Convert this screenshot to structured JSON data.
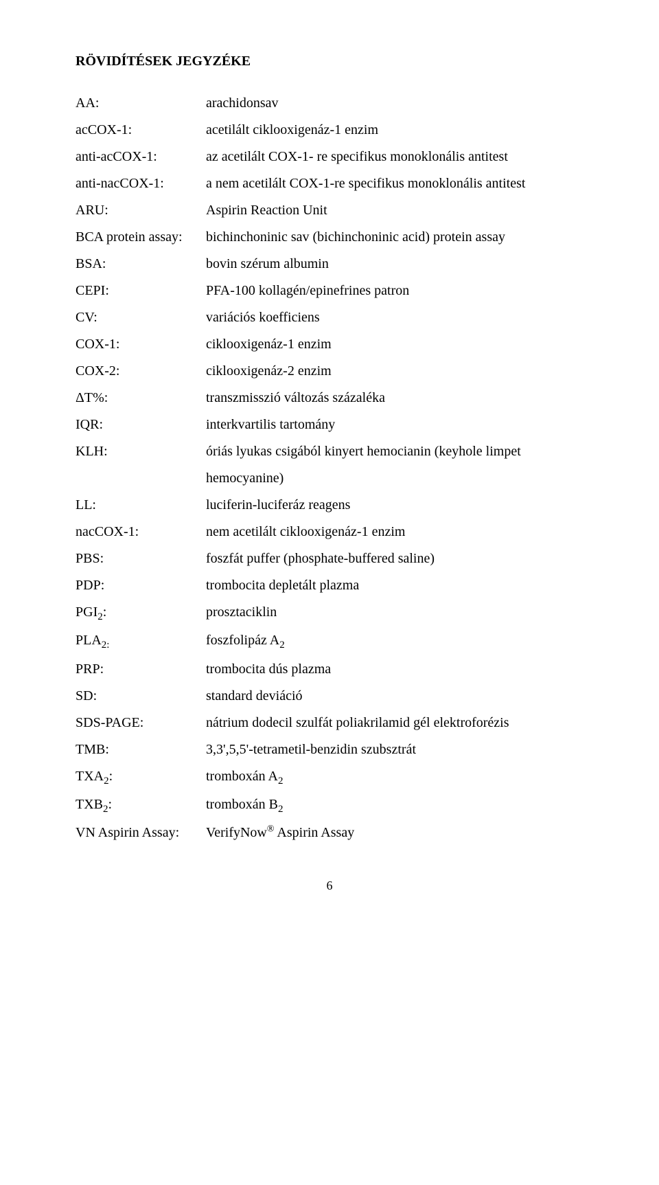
{
  "title": "RÖVIDÍTÉSEK JEGYZÉKE",
  "rows": [
    {
      "key": "AA:",
      "val": "arachidonsav"
    },
    {
      "key": "acCOX-1:",
      "val": "acetilált ciklooxigenáz-1 enzim"
    },
    {
      "key": "anti-acCOX-1:",
      "val": "az acetilált COX-1- re specifikus monoklonális antitest"
    },
    {
      "key": "anti-nacCOX-1:",
      "val": "a nem acetilált COX-1-re specifikus monoklonális antitest"
    },
    {
      "key": "ARU:",
      "val": "Aspirin Reaction Unit"
    },
    {
      "key": "BCA protein assay:",
      "val": "bichinchoninic sav (bichinchoninic acid) protein assay"
    },
    {
      "key": "BSA:",
      "val": "bovin szérum albumin"
    },
    {
      "key": "CEPI:",
      "val": "PFA-100 kollagén/epinefrines patron"
    },
    {
      "key": "CV:",
      "val": "variációs koefficiens"
    },
    {
      "key": "COX-1:",
      "val": "ciklooxigenáz-1 enzim"
    },
    {
      "key": "COX-2:",
      "val": "ciklooxigenáz-2 enzim"
    },
    {
      "key": "ΔT%:",
      "val": "transzmisszió változás százaléka"
    },
    {
      "key": "IQR:",
      "val": "interkvartilis tartomány"
    },
    {
      "key": "KLH:",
      "val": "óriás lyukas csigából kinyert hemocianin (keyhole limpet"
    },
    {
      "key": "",
      "val": "hemocyanine)"
    },
    {
      "key": "LL:",
      "val": "luciferin-luciferáz reagens"
    },
    {
      "key": "nacCOX-1:",
      "val": "nem acetilált ciklooxigenáz-1 enzim"
    },
    {
      "key": "PBS:",
      "val": "foszfát puffer (phosphate-buffered saline)"
    },
    {
      "key": "PDP:",
      "val": "trombocita depletált plazma"
    },
    {
      "key": "PGI<sub>2</sub>:",
      "val": "prosztaciklin",
      "keyHtml": true
    },
    {
      "key": "PLA<sub>2:</sub>",
      "val": "foszfolipáz A<sub>2</sub>",
      "keyHtml": true,
      "valHtml": true
    },
    {
      "key": "PRP:",
      "val": "trombocita dús plazma"
    },
    {
      "key": "SD:",
      "val": "standard deviáció"
    },
    {
      "key": "SDS-PAGE:",
      "val": "nátrium dodecil szulfát poliakrilamid gél elektroforézis"
    },
    {
      "key": "TMB:",
      "val": "3,3',5,5'-tetrametil-benzidin szubsztrát"
    },
    {
      "key": "TXA<sub>2</sub>:",
      "val": "tromboxán A<sub>2</sub>",
      "keyHtml": true,
      "valHtml": true
    },
    {
      "key": "TXB<sub>2</sub>:",
      "val": "tromboxán B<sub>2</sub>",
      "keyHtml": true,
      "valHtml": true
    },
    {
      "key": "VN Aspirin Assay:",
      "val": "VerifyNow<sup>®</sup> Aspirin Assay",
      "valHtml": true
    }
  ],
  "pageNumber": "6"
}
